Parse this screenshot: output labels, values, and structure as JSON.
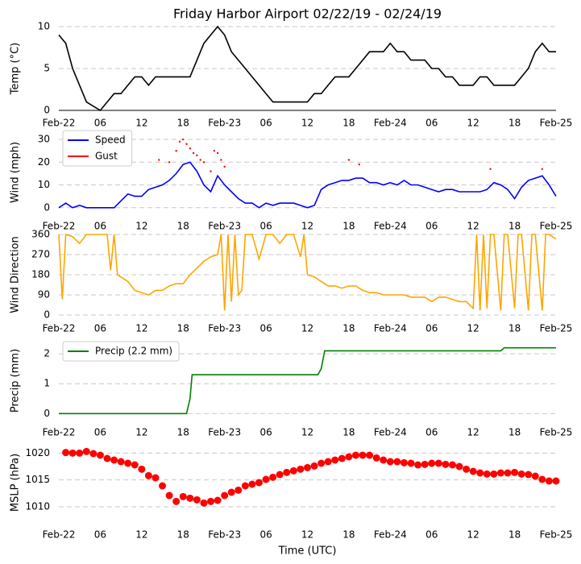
{
  "chart_data": [
    {
      "type": "line",
      "title": "Friday Harbor Airport 02/22/19 - 02/24/19",
      "y_label": "Temp (°C)",
      "xlim": [
        0,
        72
      ],
      "xticks": [
        {
          "value": 0,
          "label": "Feb-22"
        },
        {
          "value": 6,
          "label": "06"
        },
        {
          "value": 12,
          "label": "12"
        },
        {
          "value": 18,
          "label": "18"
        },
        {
          "value": 24,
          "label": "Feb-23"
        },
        {
          "value": 30,
          "label": "06"
        },
        {
          "value": 36,
          "label": "12"
        },
        {
          "value": 42,
          "label": "18"
        },
        {
          "value": 48,
          "label": "Feb-24"
        },
        {
          "value": 54,
          "label": "06"
        },
        {
          "value": 60,
          "label": "12"
        },
        {
          "value": 66,
          "label": "18"
        },
        {
          "value": 72,
          "label": "Feb-25"
        }
      ],
      "ylim": [
        0,
        10
      ],
      "yticks": [
        0,
        5,
        10
      ],
      "grid": true,
      "series": [
        {
          "color": "#000000",
          "x": [
            0,
            1,
            2,
            3,
            4,
            5,
            6,
            7,
            8,
            9,
            10,
            11,
            12,
            13,
            14,
            15,
            16,
            17,
            18,
            19,
            20,
            21,
            22,
            23,
            24,
            25,
            26,
            27,
            28,
            29,
            30,
            31,
            32,
            33,
            34,
            35,
            36,
            37,
            38,
            39,
            40,
            41,
            42,
            43,
            44,
            45,
            46,
            47,
            48,
            49,
            50,
            51,
            52,
            53,
            54,
            55,
            56,
            57,
            58,
            59,
            60,
            61,
            62,
            63,
            64,
            65,
            66,
            67,
            68,
            69,
            70,
            71,
            72
          ],
          "values": [
            9,
            8,
            5,
            3,
            1,
            0.5,
            0,
            1,
            2,
            2,
            3,
            4,
            4,
            3,
            4,
            4,
            4,
            4,
            4,
            4,
            6,
            8,
            9,
            10,
            9,
            7,
            6,
            5,
            4,
            3,
            2,
            1,
            1,
            1,
            1,
            1,
            1,
            2,
            2,
            3,
            4,
            4,
            4,
            5,
            6,
            7,
            7,
            7,
            8,
            7,
            7,
            6,
            6,
            6,
            5,
            5,
            4,
            4,
            3,
            3,
            3,
            4,
            4,
            3,
            3,
            3,
            3,
            4,
            5,
            7,
            8,
            7,
            7
          ]
        }
      ]
    },
    {
      "type": "line",
      "y_label": "Wind (mph)",
      "legend": "upper left",
      "xlim": [
        0,
        72
      ],
      "xticks": [
        {
          "value": 0,
          "label": "Feb-22"
        },
        {
          "value": 6,
          "label": "06"
        },
        {
          "value": 12,
          "label": "12"
        },
        {
          "value": 18,
          "label": "18"
        },
        {
          "value": 24,
          "label": "Feb-23"
        },
        {
          "value": 30,
          "label": "06"
        },
        {
          "value": 36,
          "label": "12"
        },
        {
          "value": 42,
          "label": "18"
        },
        {
          "value": 48,
          "label": "Feb-24"
        },
        {
          "value": 54,
          "label": "06"
        },
        {
          "value": 60,
          "label": "12"
        },
        {
          "value": 66,
          "label": "18"
        },
        {
          "value": 72,
          "label": "Feb-25"
        }
      ],
      "ylim": [
        -1.5,
        32.5
      ],
      "yticks": [
        0,
        10,
        20,
        30
      ],
      "grid": true,
      "series": [
        {
          "name": "Speed",
          "color": "#0000ff",
          "x": [
            0,
            1,
            2,
            3,
            4,
            5,
            6,
            7,
            8,
            9,
            10,
            11,
            12,
            13,
            14,
            15,
            16,
            17,
            18,
            19,
            20,
            21,
            22,
            23,
            24,
            25,
            26,
            27,
            28,
            29,
            30,
            31,
            32,
            33,
            34,
            35,
            36,
            37,
            38,
            39,
            40,
            41,
            42,
            43,
            44,
            45,
            46,
            47,
            48,
            49,
            50,
            51,
            52,
            53,
            54,
            55,
            56,
            57,
            58,
            59,
            60,
            61,
            62,
            63,
            64,
            65,
            66,
            67,
            68,
            69,
            70,
            71,
            72
          ],
          "values": [
            0,
            2,
            0,
            1,
            0,
            0,
            0,
            0,
            0,
            3,
            6,
            5,
            5,
            8,
            9,
            10,
            12,
            15,
            19,
            20,
            16,
            10,
            7,
            14,
            10,
            7,
            4,
            2,
            2,
            0,
            2,
            1,
            2,
            2,
            2,
            1,
            0,
            1,
            8,
            10,
            11,
            12,
            12,
            13,
            13,
            11,
            11,
            10,
            11,
            10,
            12,
            10,
            10,
            9,
            8,
            7,
            8,
            8,
            7,
            7,
            7,
            7,
            8,
            11,
            10,
            8,
            4,
            9,
            12,
            13,
            14,
            10,
            5
          ]
        },
        {
          "name": "Gust",
          "color": "#ff0000",
          "type": "scatter",
          "x": [
            14.5,
            16,
            17,
            17.5,
            18,
            18.5,
            19,
            19.5,
            20,
            20.5,
            21,
            22,
            22.5,
            23,
            23.5,
            24,
            42,
            43.5,
            62.5,
            70
          ],
          "values": [
            21,
            20,
            25,
            29,
            30,
            28,
            26,
            24,
            23,
            21,
            20,
            16,
            25,
            24,
            21,
            18,
            21,
            19,
            17,
            17
          ]
        }
      ]
    },
    {
      "type": "line",
      "y_label": "Wind Direction",
      "xlim": [
        0,
        72
      ],
      "xticks": [
        {
          "value": 0,
          "label": "Feb-22"
        },
        {
          "value": 6,
          "label": "06"
        },
        {
          "value": 12,
          "label": "12"
        },
        {
          "value": 18,
          "label": "18"
        },
        {
          "value": 24,
          "label": "Feb-23"
        },
        {
          "value": 30,
          "label": "06"
        },
        {
          "value": 36,
          "label": "12"
        },
        {
          "value": 42,
          "label": "18"
        },
        {
          "value": 48,
          "label": "Feb-24"
        },
        {
          "value": 54,
          "label": "06"
        },
        {
          "value": 60,
          "label": "12"
        },
        {
          "value": 66,
          "label": "18"
        },
        {
          "value": 72,
          "label": "Feb-25"
        }
      ],
      "ylim": [
        0,
        360
      ],
      "yticks": [
        0,
        90,
        180,
        270,
        360
      ],
      "grid": true,
      "series": [
        {
          "color": "#ffa500",
          "x": [
            0,
            0.5,
            1,
            2,
            3,
            4,
            5,
            6,
            7,
            7.5,
            8,
            8.5,
            9,
            10,
            11,
            12,
            13,
            14,
            15,
            16,
            17,
            18,
            19,
            20,
            21,
            22,
            23,
            23.5,
            24,
            24.5,
            25,
            25.5,
            26,
            26.5,
            27,
            28,
            29,
            30,
            31,
            32,
            33,
            34,
            35,
            35.5,
            36,
            37,
            38,
            39,
            40,
            41,
            42,
            43,
            44,
            45,
            46,
            47,
            48,
            49,
            50,
            51,
            52,
            53,
            54,
            55,
            56,
            57,
            58,
            59,
            60,
            60.5,
            61,
            61.5,
            62,
            62.5,
            63,
            64,
            64.5,
            65,
            66,
            66.5,
            67,
            68,
            68.5,
            69,
            70,
            70.5,
            71,
            72
          ],
          "values": [
            360,
            70,
            360,
            350,
            320,
            360,
            360,
            360,
            360,
            200,
            360,
            180,
            170,
            150,
            110,
            100,
            90,
            110,
            110,
            130,
            140,
            140,
            180,
            210,
            240,
            260,
            270,
            360,
            20,
            360,
            60,
            360,
            90,
            110,
            360,
            360,
            250,
            360,
            360,
            320,
            360,
            360,
            260,
            360,
            180,
            170,
            150,
            130,
            130,
            120,
            130,
            130,
            110,
            100,
            100,
            90,
            90,
            90,
            90,
            80,
            80,
            80,
            60,
            80,
            80,
            70,
            60,
            60,
            30,
            360,
            20,
            360,
            30,
            360,
            360,
            20,
            360,
            360,
            30,
            360,
            360,
            20,
            360,
            360,
            20,
            360,
            360,
            340
          ]
        }
      ]
    },
    {
      "type": "line",
      "y_label": "Precip (mm)",
      "legend": "upper left",
      "xlim": [
        0,
        72
      ],
      "xticks": [
        {
          "value": 0,
          "label": "Feb-22"
        },
        {
          "value": 6,
          "label": "06"
        },
        {
          "value": 12,
          "label": "12"
        },
        {
          "value": 18,
          "label": "18"
        },
        {
          "value": 24,
          "label": "Feb-23"
        },
        {
          "value": 30,
          "label": "06"
        },
        {
          "value": 36,
          "label": "12"
        },
        {
          "value": 42,
          "label": "18"
        },
        {
          "value": 48,
          "label": "Feb-24"
        },
        {
          "value": 54,
          "label": "06"
        },
        {
          "value": 60,
          "label": "12"
        },
        {
          "value": 66,
          "label": "18"
        },
        {
          "value": 72,
          "label": "Feb-25"
        }
      ],
      "ylim": [
        -0.1,
        2.3
      ],
      "yticks": [
        0,
        1,
        2
      ],
      "grid": true,
      "series": [
        {
          "name": "Precip (2.2 mm)",
          "color": "#008000",
          "x": [
            0,
            18.5,
            19,
            19.3,
            37.5,
            38,
            38.5,
            64,
            64.5,
            72
          ],
          "values": [
            0,
            0,
            0.5,
            1.3,
            1.3,
            1.5,
            2.1,
            2.1,
            2.2,
            2.2
          ]
        }
      ]
    },
    {
      "type": "scatter",
      "y_label": "MSLP (hPa)",
      "x_label": "Time (UTC)",
      "xlim": [
        0,
        72
      ],
      "xticks": [
        {
          "value": 0,
          "label": "Feb-22"
        },
        {
          "value": 6,
          "label": "06"
        },
        {
          "value": 12,
          "label": "12"
        },
        {
          "value": 18,
          "label": "18"
        },
        {
          "value": 24,
          "label": "Feb-23"
        },
        {
          "value": 30,
          "label": "06"
        },
        {
          "value": 36,
          "label": "12"
        },
        {
          "value": 42,
          "label": "18"
        },
        {
          "value": 48,
          "label": "Feb-24"
        },
        {
          "value": 54,
          "label": "06"
        },
        {
          "value": 60,
          "label": "12"
        },
        {
          "value": 66,
          "label": "18"
        },
        {
          "value": 72,
          "label": "Feb-25"
        }
      ],
      "ylim": [
        1007,
        1022
      ],
      "yticks": [
        1010,
        1015,
        1020
      ],
      "grid": true,
      "series": [
        {
          "color": "#ff0000",
          "x": [
            1,
            2,
            3,
            4,
            5,
            6,
            7,
            8,
            9,
            10,
            11,
            12,
            13,
            14,
            15,
            16,
            17,
            18,
            19,
            20,
            21,
            22,
            23,
            24,
            25,
            26,
            27,
            28,
            29,
            30,
            31,
            32,
            33,
            34,
            35,
            36,
            37,
            38,
            39,
            40,
            41,
            42,
            43,
            44,
            45,
            46,
            47,
            48,
            49,
            50,
            51,
            52,
            53,
            54,
            55,
            56,
            57,
            58,
            59,
            60,
            61,
            62,
            63,
            64,
            65,
            66,
            67,
            68,
            69,
            70,
            71,
            72
          ],
          "values": [
            1020.1,
            1020,
            1020,
            1020.3,
            1019.9,
            1019.6,
            1019,
            1018.7,
            1018.4,
            1018.1,
            1017.8,
            1017,
            1015.8,
            1015.4,
            1013.9,
            1012.1,
            1011,
            1011.9,
            1011.6,
            1011.3,
            1010.7,
            1011,
            1011.2,
            1012.1,
            1012.7,
            1013.1,
            1013.9,
            1014.2,
            1014.5,
            1015.1,
            1015.5,
            1016,
            1016.4,
            1016.7,
            1017,
            1017.3,
            1017.6,
            1018.1,
            1018.4,
            1018.7,
            1019,
            1019.3,
            1019.6,
            1019.6,
            1019.6,
            1019.1,
            1018.7,
            1018.4,
            1018.4,
            1018.2,
            1018.1,
            1017.8,
            1017.9,
            1018.1,
            1018.1,
            1017.9,
            1017.8,
            1017.5,
            1017,
            1016.6,
            1016.3,
            1016.1,
            1016.1,
            1016.3,
            1016.3,
            1016.4,
            1016.1,
            1016,
            1015.7,
            1015.1,
            1014.8,
            1014.8
          ]
        }
      ]
    }
  ]
}
